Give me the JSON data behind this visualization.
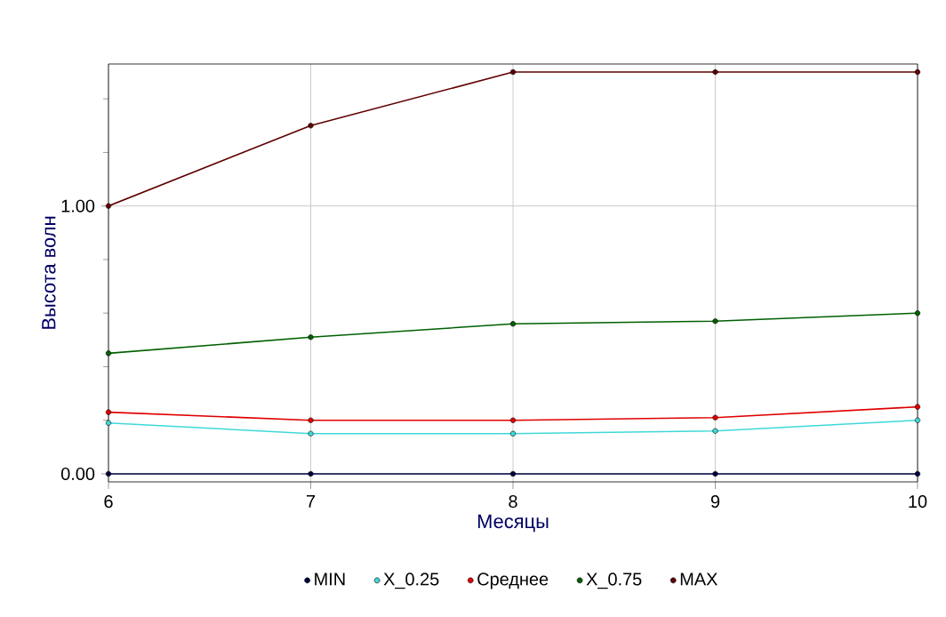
{
  "chart_data": {
    "type": "line",
    "xlabel": "Месяцы",
    "ylabel": "Высота волн",
    "x": [
      6,
      7,
      8,
      9,
      10
    ],
    "series": [
      {
        "name": "MIN",
        "color": "#000040",
        "values": [
          0,
          0,
          0,
          0,
          0
        ]
      },
      {
        "name": "X_0.25",
        "color": "#40d8d8",
        "values": [
          0.19,
          0.15,
          0.15,
          0.16,
          0.2
        ]
      },
      {
        "name": "Среднее",
        "color": "#e00000",
        "values": [
          0.23,
          0.2,
          0.2,
          0.21,
          0.25
        ]
      },
      {
        "name": "X_0.75",
        "color": "#006000",
        "values": [
          0.45,
          0.51,
          0.56,
          0.57,
          0.6
        ]
      },
      {
        "name": "MAX",
        "color": "#600000",
        "values": [
          1.0,
          1.3,
          1.5,
          1.5,
          1.5
        ]
      }
    ],
    "xlim": [
      6,
      10
    ],
    "ylim": [
      -0.03,
      1.53
    ],
    "xticks": [
      6,
      7,
      8,
      9,
      10
    ],
    "yticks": [
      {
        "value": 0,
        "label": "0.00"
      },
      {
        "value": 0.2,
        "label": null
      },
      {
        "value": 0.4,
        "label": null
      },
      {
        "value": 0.6,
        "label": null
      },
      {
        "value": 0.8,
        "label": null
      },
      {
        "value": 1,
        "label": "1.00"
      },
      {
        "value": 1.2,
        "label": null
      },
      {
        "value": 1.4,
        "label": null
      }
    ],
    "grid": true,
    "legend": "bottom",
    "marker": "circle",
    "line_style": "solid"
  }
}
